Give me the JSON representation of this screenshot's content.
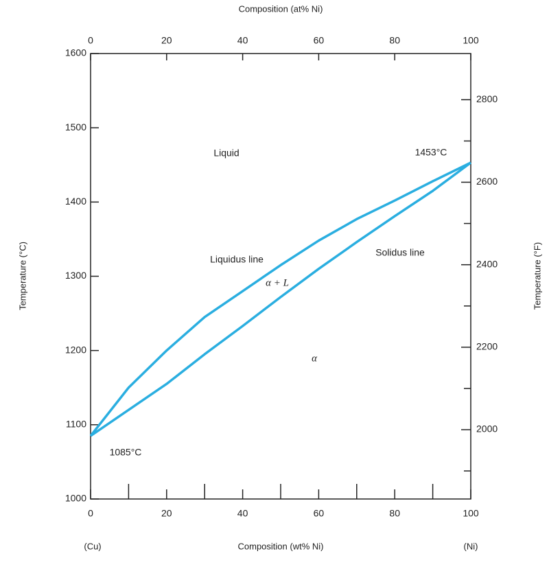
{
  "chart_data": {
    "type": "line",
    "x_label": "Composition (wt% Ni)",
    "x2_label": "Composition (at% Ni)",
    "y_label": "Temperature (°C)",
    "y2_label": "Temperature (°F)",
    "x_left_label": "(Cu)",
    "x_right_label": "(Ni)",
    "x": [
      0,
      10,
      20,
      30,
      40,
      50,
      60,
      70,
      80,
      90,
      100
    ],
    "series": [
      {
        "color": "#2aaee0",
        "values": [
          1085,
          1150,
          1200,
          1245,
          1280,
          1315,
          1348,
          1377,
          1402,
          1428,
          1453
        ]
      },
      {
        "color": "#2aaee0",
        "values": [
          1085,
          1120,
          1155,
          1195,
          1233,
          1272,
          1310,
          1346,
          1381,
          1415,
          1453
        ]
      }
    ],
    "xlim": [
      0,
      100
    ],
    "xticks": [
      0,
      20,
      40,
      60,
      80,
      100
    ],
    "xminorticks": [
      10,
      30,
      50,
      70,
      90
    ],
    "x2lim": [
      0,
      100
    ],
    "x2ticks": [
      0,
      20,
      40,
      60,
      80,
      100
    ],
    "ylim": [
      1000,
      1600
    ],
    "yticks": [
      1000,
      1100,
      1200,
      1300,
      1400,
      1500,
      1600
    ],
    "y2lim": [
      1832,
      2912
    ],
    "y2ticks": [
      2000,
      2200,
      2400,
      2600,
      2800
    ],
    "y2minorticks": [
      1900,
      2100,
      2300,
      2500,
      2700
    ],
    "annotations": [
      "Liquid",
      "Liquidus line",
      "α + L",
      "Solidus line",
      "α",
      "1453°C",
      "1085°C"
    ]
  }
}
